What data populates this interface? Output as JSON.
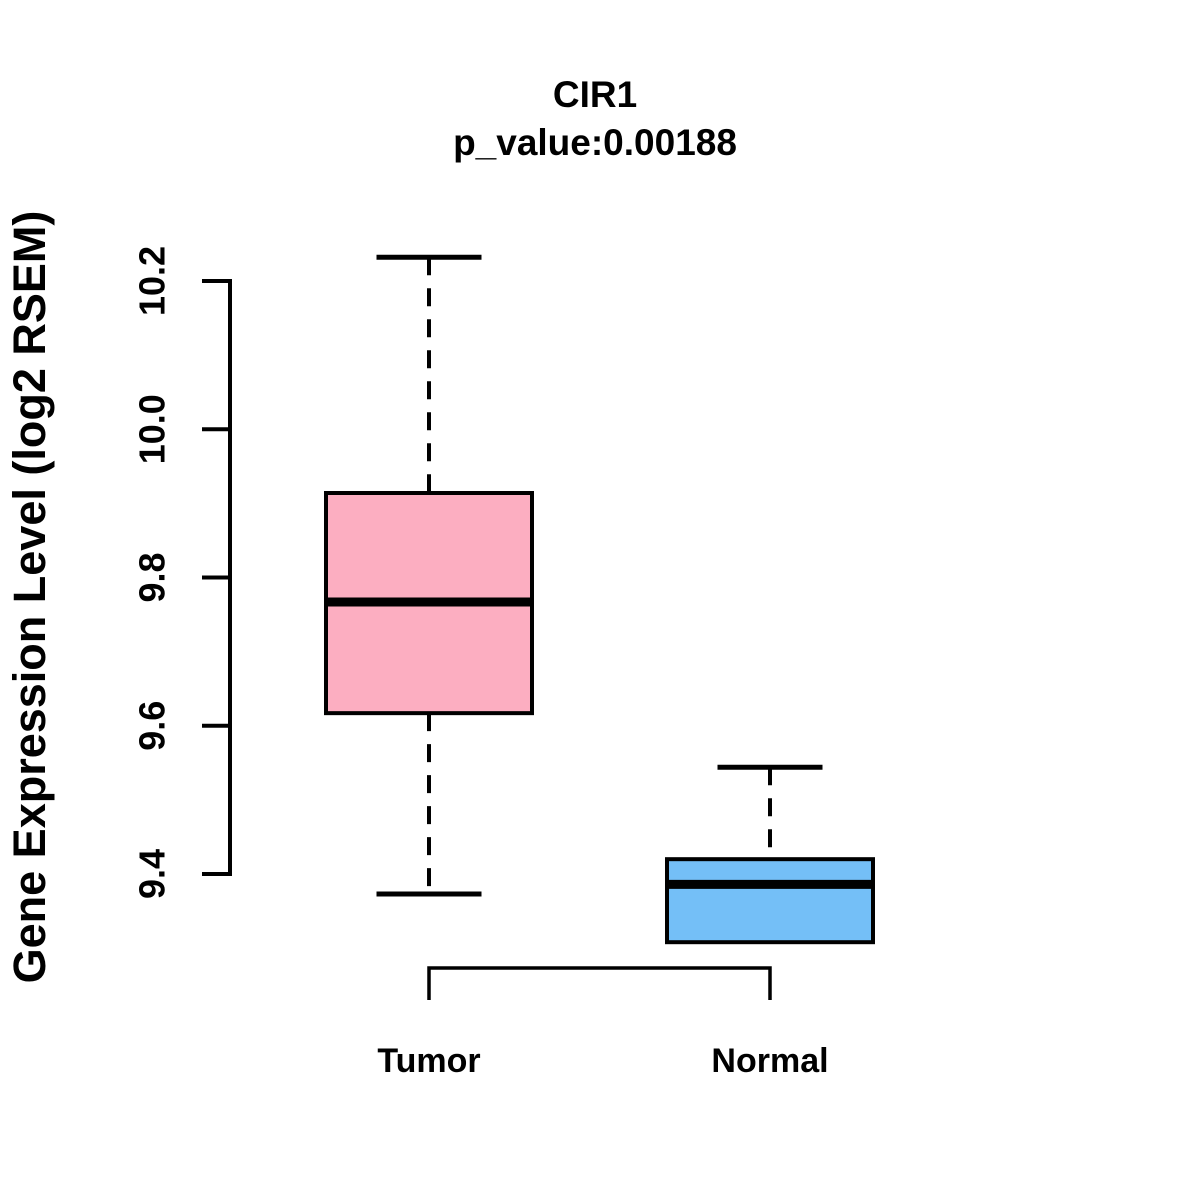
{
  "title": "CIR1",
  "subtitle": "p_value:0.00188",
  "chart_data": {
    "type": "boxplot",
    "title": "CIR1",
    "subtitle": "p_value:0.00188",
    "p_value": "0.00188",
    "ylabel": "Gene Expression Level (log2 RSEM)",
    "xlabel": "",
    "categories": [
      "Tumor",
      "Normal"
    ],
    "yticks": [
      {
        "value": 10.2,
        "label": "10.2"
      },
      {
        "value": 10.0,
        "label": "10.0"
      },
      {
        "value": 9.8,
        "label": "9.8"
      },
      {
        "value": 9.6,
        "label": "9.6"
      },
      {
        "value": 9.4,
        "label": "9.4"
      }
    ],
    "ylim": [
      9.31,
      10.24
    ],
    "grid": false,
    "legend": "none",
    "series": [
      {
        "name": "Tumor",
        "color": "#FCAEC1",
        "min": 9.373,
        "q1": 9.617,
        "median": 9.767,
        "q3": 9.914,
        "max": 10.232
      },
      {
        "name": "Normal",
        "color": "#74BFF7",
        "min": 9.308,
        "q1": 9.308,
        "median": 9.386,
        "q3": 9.42,
        "max": 9.544
      }
    ],
    "colors": {
      "box_border": "#000000",
      "axis": "#000000",
      "text": "#000000"
    }
  }
}
